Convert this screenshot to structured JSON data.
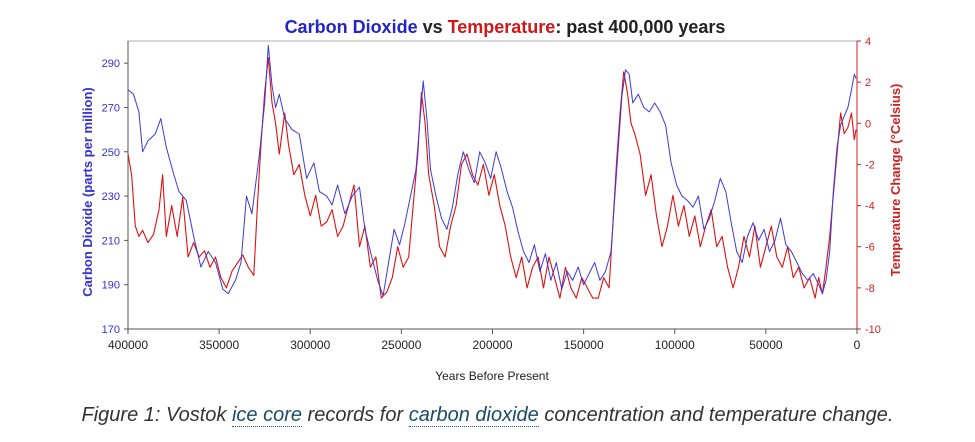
{
  "chart_data": {
    "type": "line",
    "title_parts": [
      {
        "text": "Carbon Dioxide",
        "color": "#2323c8"
      },
      {
        "text": " vs ",
        "color": "#222222"
      },
      {
        "text": "Temperature",
        "color": "#d01818"
      },
      {
        "text": ": past 400,000 years",
        "color": "#222222"
      }
    ],
    "xlabel": "Years Before Present",
    "ylabel_left": "Carbon Dioxide (parts per million)",
    "ylabel_right": "Temperature Change (°Celsius)",
    "xlim": [
      400000,
      0
    ],
    "ylim_left": [
      170,
      300
    ],
    "ylim_right": [
      -10,
      4
    ],
    "x_ticks": [
      400000,
      350000,
      300000,
      250000,
      200000,
      150000,
      100000,
      50000,
      0
    ],
    "y_left_ticks": [
      170,
      190,
      210,
      230,
      250,
      270,
      290
    ],
    "y_right_ticks": [
      -10,
      -8,
      -6,
      -4,
      -2,
      0,
      2,
      4
    ],
    "series": [
      {
        "name": "Carbon Dioxide",
        "axis": "left",
        "color": "#3a3ae0",
        "points": [
          [
            400000,
            278
          ],
          [
            397000,
            276
          ],
          [
            394000,
            268
          ],
          [
            392000,
            250
          ],
          [
            389000,
            255
          ],
          [
            385000,
            258
          ],
          [
            382000,
            265
          ],
          [
            379000,
            252
          ],
          [
            375000,
            240
          ],
          [
            372000,
            232
          ],
          [
            368000,
            228
          ],
          [
            364000,
            212
          ],
          [
            360000,
            198
          ],
          [
            356000,
            205
          ],
          [
            352000,
            200
          ],
          [
            348000,
            188
          ],
          [
            345000,
            186
          ],
          [
            341000,
            192
          ],
          [
            338000,
            200
          ],
          [
            335000,
            230
          ],
          [
            332000,
            222
          ],
          [
            328000,
            248
          ],
          [
            325000,
            272
          ],
          [
            323000,
            298
          ],
          [
            321000,
            280
          ],
          [
            319000,
            270
          ],
          [
            317000,
            276
          ],
          [
            314000,
            265
          ],
          [
            310000,
            260
          ],
          [
            306000,
            258
          ],
          [
            302000,
            238
          ],
          [
            298000,
            245
          ],
          [
            295000,
            232
          ],
          [
            291000,
            230
          ],
          [
            288000,
            226
          ],
          [
            285000,
            235
          ],
          [
            281000,
            222
          ],
          [
            277000,
            230
          ],
          [
            273000,
            234
          ],
          [
            270000,
            215
          ],
          [
            267000,
            205
          ],
          [
            263000,
            192
          ],
          [
            260000,
            185
          ],
          [
            257000,
            200
          ],
          [
            254000,
            215
          ],
          [
            251000,
            208
          ],
          [
            248000,
            218
          ],
          [
            245000,
            230
          ],
          [
            242000,
            242
          ],
          [
            240000,
            262
          ],
          [
            238000,
            282
          ],
          [
            236000,
            265
          ],
          [
            234000,
            242
          ],
          [
            231000,
            230
          ],
          [
            228000,
            220
          ],
          [
            225000,
            215
          ],
          [
            222000,
            225
          ],
          [
            219000,
            240
          ],
          [
            216000,
            250
          ],
          [
            213000,
            242
          ],
          [
            210000,
            236
          ],
          [
            207000,
            250
          ],
          [
            204000,
            245
          ],
          [
            201000,
            238
          ],
          [
            198000,
            250
          ],
          [
            195000,
            242
          ],
          [
            192000,
            232
          ],
          [
            189000,
            225
          ],
          [
            186000,
            214
          ],
          [
            183000,
            205
          ],
          [
            180000,
            200
          ],
          [
            177000,
            208
          ],
          [
            174000,
            196
          ],
          [
            171000,
            204
          ],
          [
            168000,
            192
          ],
          [
            165000,
            200
          ],
          [
            162000,
            188
          ],
          [
            159000,
            196
          ],
          [
            156000,
            192
          ],
          [
            153000,
            198
          ],
          [
            150000,
            190
          ],
          [
            147000,
            195
          ],
          [
            144000,
            200
          ],
          [
            141000,
            192
          ],
          [
            138000,
            196
          ],
          [
            135000,
            205
          ],
          [
            133000,
            228
          ],
          [
            131000,
            252
          ],
          [
            129000,
            275
          ],
          [
            127000,
            287
          ],
          [
            125000,
            285
          ],
          [
            123000,
            272
          ],
          [
            120000,
            276
          ],
          [
            117000,
            270
          ],
          [
            114000,
            268
          ],
          [
            111000,
            272
          ],
          [
            108000,
            268
          ],
          [
            105000,
            262
          ],
          [
            102000,
            245
          ],
          [
            99000,
            235
          ],
          [
            96000,
            230
          ],
          [
            93000,
            228
          ],
          [
            90000,
            225
          ],
          [
            87000,
            230
          ],
          [
            84000,
            215
          ],
          [
            81000,
            220
          ],
          [
            78000,
            228
          ],
          [
            75000,
            238
          ],
          [
            72000,
            232
          ],
          [
            69000,
            218
          ],
          [
            66000,
            205
          ],
          [
            63000,
            200
          ],
          [
            60000,
            212
          ],
          [
            57000,
            218
          ],
          [
            54000,
            210
          ],
          [
            51000,
            215
          ],
          [
            48000,
            205
          ],
          [
            45000,
            210
          ],
          [
            42000,
            220
          ],
          [
            39000,
            208
          ],
          [
            36000,
            205
          ],
          [
            33000,
            200
          ],
          [
            30000,
            195
          ],
          [
            27000,
            192
          ],
          [
            24000,
            195
          ],
          [
            21000,
            190
          ],
          [
            19000,
            186
          ],
          [
            17000,
            192
          ],
          [
            15000,
            205
          ],
          [
            13000,
            232
          ],
          [
            11000,
            252
          ],
          [
            9000,
            262
          ],
          [
            7000,
            266
          ],
          [
            5000,
            270
          ],
          [
            3000,
            278
          ],
          [
            1500,
            285
          ],
          [
            500,
            283
          ]
        ]
      },
      {
        "name": "Temperature",
        "axis": "right",
        "color": "#e01010",
        "points": [
          [
            400000,
            -1.5
          ],
          [
            398000,
            -2.5
          ],
          [
            396000,
            -5
          ],
          [
            394000,
            -5.5
          ],
          [
            392000,
            -5.2
          ],
          [
            389000,
            -5.8
          ],
          [
            386000,
            -5.4
          ],
          [
            383000,
            -4.2
          ],
          [
            381000,
            -2.5
          ],
          [
            379000,
            -5.5
          ],
          [
            376000,
            -4.0
          ],
          [
            373000,
            -5.5
          ],
          [
            370000,
            -3.6
          ],
          [
            367000,
            -6.5
          ],
          [
            364000,
            -5.8
          ],
          [
            361000,
            -6.5
          ],
          [
            358000,
            -6.2
          ],
          [
            355000,
            -7.0
          ],
          [
            352000,
            -6.5
          ],
          [
            349000,
            -7.5
          ],
          [
            346000,
            -8.0
          ],
          [
            343000,
            -7.2
          ],
          [
            340000,
            -6.8
          ],
          [
            337000,
            -6.4
          ],
          [
            334000,
            -7.0
          ],
          [
            331000,
            -7.4
          ],
          [
            329000,
            -4.0
          ],
          [
            327000,
            -1.0
          ],
          [
            325000,
            1.5
          ],
          [
            323000,
            3.2
          ],
          [
            321000,
            1.0
          ],
          [
            319000,
            0
          ],
          [
            317000,
            -1.5
          ],
          [
            314000,
            0.5
          ],
          [
            312000,
            -1.0
          ],
          [
            309000,
            -2.5
          ],
          [
            306000,
            -2.0
          ],
          [
            303000,
            -3.5
          ],
          [
            300000,
            -4.5
          ],
          [
            297000,
            -3.5
          ],
          [
            294000,
            -5.0
          ],
          [
            291000,
            -4.8
          ],
          [
            288000,
            -4.2
          ],
          [
            285000,
            -5.5
          ],
          [
            282000,
            -5.0
          ],
          [
            279000,
            -4.0
          ],
          [
            276000,
            -3.0
          ],
          [
            273000,
            -6.0
          ],
          [
            270000,
            -5.0
          ],
          [
            267000,
            -7.0
          ],
          [
            264000,
            -6.5
          ],
          [
            261000,
            -8.5
          ],
          [
            258000,
            -8.2
          ],
          [
            255000,
            -7.5
          ],
          [
            252000,
            -6.0
          ],
          [
            249000,
            -7.0
          ],
          [
            246000,
            -6.5
          ],
          [
            243000,
            -3.5
          ],
          [
            241000,
            -1.5
          ],
          [
            239000,
            1.5
          ],
          [
            237000,
            0
          ],
          [
            235000,
            -2.5
          ],
          [
            232000,
            -4.0
          ],
          [
            229000,
            -6.0
          ],
          [
            226000,
            -6.5
          ],
          [
            223000,
            -5.0
          ],
          [
            220000,
            -4.0
          ],
          [
            217000,
            -2.0
          ],
          [
            214000,
            -1.5
          ],
          [
            211000,
            -2.5
          ],
          [
            208000,
            -3.0
          ],
          [
            205000,
            -2.0
          ],
          [
            202000,
            -3.5
          ],
          [
            199000,
            -2.5
          ],
          [
            196000,
            -4.0
          ],
          [
            193000,
            -5.0
          ],
          [
            190000,
            -6.5
          ],
          [
            187000,
            -7.5
          ],
          [
            184000,
            -6.5
          ],
          [
            181000,
            -8.0
          ],
          [
            178000,
            -7.0
          ],
          [
            175000,
            -6.5
          ],
          [
            172000,
            -8.0
          ],
          [
            169000,
            -6.5
          ],
          [
            166000,
            -7.5
          ],
          [
            163000,
            -8.5
          ],
          [
            160000,
            -7.0
          ],
          [
            157000,
            -8.0
          ],
          [
            154000,
            -8.5
          ],
          [
            151000,
            -7.5
          ],
          [
            148000,
            -8.0
          ],
          [
            145000,
            -8.5
          ],
          [
            142000,
            -8.5
          ],
          [
            139000,
            -7.5
          ],
          [
            136000,
            -8.0
          ],
          [
            134000,
            -5.0
          ],
          [
            132000,
            -2.0
          ],
          [
            130000,
            0.5
          ],
          [
            128000,
            2.5
          ],
          [
            126000,
            1.5
          ],
          [
            124000,
            0
          ],
          [
            122000,
            -0.5
          ],
          [
            119000,
            -1.5
          ],
          [
            116000,
            -3.5
          ],
          [
            113000,
            -2.5
          ],
          [
            110000,
            -4.5
          ],
          [
            107000,
            -6.0
          ],
          [
            104000,
            -5.0
          ],
          [
            101000,
            -3.5
          ],
          [
            98000,
            -5.0
          ],
          [
            95000,
            -4.0
          ],
          [
            92000,
            -5.5
          ],
          [
            89000,
            -4.5
          ],
          [
            86000,
            -6.0
          ],
          [
            83000,
            -5.0
          ],
          [
            80000,
            -4.2
          ],
          [
            77000,
            -6.0
          ],
          [
            74000,
            -5.5
          ],
          [
            71000,
            -7.0
          ],
          [
            68000,
            -8.0
          ],
          [
            65000,
            -7.0
          ],
          [
            62000,
            -5.5
          ],
          [
            59000,
            -6.5
          ],
          [
            56000,
            -5.0
          ],
          [
            53000,
            -7.0
          ],
          [
            50000,
            -6.0
          ],
          [
            47000,
            -5.0
          ],
          [
            44000,
            -6.5
          ],
          [
            41000,
            -7.0
          ],
          [
            38000,
            -6.0
          ],
          [
            35000,
            -7.5
          ],
          [
            32000,
            -7.0
          ],
          [
            29000,
            -8.0
          ],
          [
            26000,
            -7.5
          ],
          [
            23000,
            -8.5
          ],
          [
            21000,
            -7.5
          ],
          [
            19000,
            -8.3
          ],
          [
            17000,
            -7.0
          ],
          [
            15000,
            -5.5
          ],
          [
            13000,
            -3.5
          ],
          [
            11000,
            -1.5
          ],
          [
            9000,
            0.5
          ],
          [
            7000,
            -0.5
          ],
          [
            5000,
            -0.2
          ],
          [
            3000,
            0.5
          ],
          [
            1500,
            -0.8
          ],
          [
            500,
            -0.3
          ]
        ]
      }
    ]
  },
  "caption": {
    "prefix": "Figure 1: Vostok ",
    "link1": "ice core",
    "middle": " records for ",
    "link2": "carbon dioxide",
    "suffix": " concentration and temperature change."
  }
}
